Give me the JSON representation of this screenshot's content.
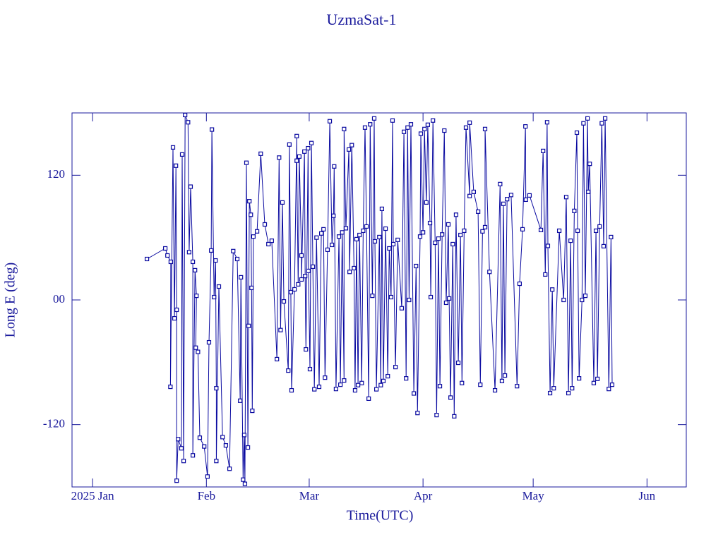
{
  "chart_data": {
    "type": "line",
    "title": "UzmaSat-1",
    "xlabel": "Time(UTC)",
    "ylabel": "Long E (deg)",
    "color": "#0a0aa0",
    "xlim": [
      -5.6,
      161.7
    ],
    "ylim": [
      -180,
      180
    ],
    "xticks": [
      {
        "value": 0,
        "label": "2025 Jan"
      },
      {
        "value": 31,
        "label": "Feb"
      },
      {
        "value": 59,
        "label": "Mar"
      },
      {
        "value": 90,
        "label": "Apr"
      },
      {
        "value": 120,
        "label": "May"
      },
      {
        "value": 151,
        "label": "Jun"
      }
    ],
    "yticks": [
      -120,
      {
        "value": 0,
        "label": "00"
      },
      120
    ],
    "x": [
      14.8,
      19.8,
      20.4,
      21.3,
      21.2,
      21.9,
      22.3,
      22.7,
      22.9,
      22.9,
      23.3,
      24.2,
      24.4,
      24.8,
      25.2,
      26,
      26.3,
      26.7,
      27.3,
      27.3,
      27.9,
      28.3,
      28.1,
      28.7,
      29.2,
      30.4,
      31.3,
      31.7,
      32.3,
      32.5,
      33.1,
      33.5,
      33.7,
      33.7,
      34.4,
      35.4,
      36.3,
      37.3,
      38.3,
      39.4,
      40.2,
      40.4,
      41,
      41.3,
      41.5,
      41.9,
      42.3,
      42.5,
      42.7,
      43.1,
      43.3,
      43.5,
      43.8,
      44.8,
      45.8,
      46.9,
      47.9,
      48.8,
      50.2,
      50.8,
      51.2,
      51.7,
      52.1,
      53.3,
      53.6,
      54,
      54.2,
      55,
      55.6,
      55.6,
      56,
      56.3,
      56.9,
      56.9,
      57.7,
      57.9,
      58.1,
      58.7,
      58.8,
      59.2,
      59.6,
      60,
      60.4,
      61,
      61.7,
      62.3,
      62.9,
      63.3,
      64,
      64.6,
      65.2,
      65.6,
      65.8,
      66.3,
      67.1,
      67.5,
      68,
      68.5,
      68.5,
      69,
      69.8,
      70,
      70.6,
      71.2,
      71.5,
      71.9,
      72.3,
      72.7,
      73.3,
      73.7,
      74.2,
      74.6,
      75.2,
      75.6,
      76.2,
      76.7,
      76.9,
      77.3,
      78.1,
      78.5,
      78.8,
      79.2,
      79.8,
      80.4,
      80.8,
      81.3,
      81.7,
      81.9,
      82.5,
      83.1,
      84.2,
      84.8,
      85.4,
      85.8,
      86.2,
      86.7,
      87.5,
      88.1,
      88.5,
      89.2,
      89.4,
      90,
      90.4,
      90.9,
      91.3,
      91.9,
      92.1,
      92.7,
      93.3,
      93.7,
      94.2,
      94.6,
      95.2,
      95.8,
      96.3,
      96.9,
      97.1,
      97.5,
      98.1,
      98.5,
      99,
      99.6,
      100.2,
      100.6,
      101.2,
      101.7,
      102.7,
      102.7,
      103.8,
      105,
      105.6,
      106.2,
      106.9,
      106.9,
      108.1,
      109.6,
      111,
      111.5,
      111.9,
      112.3,
      112.9,
      114,
      115.6,
      116.3,
      117.1,
      117.9,
      118,
      119,
      122.1,
      122.7,
      123.3,
      123.8,
      124,
      124.6,
      125.2,
      125.6,
      127.1,
      128.3,
      129,
      129.6,
      130.2,
      130.6,
      131.2,
      131.9,
      132.1,
      132.5,
      133.3,
      133.7,
      134.2,
      134.8,
      135,
      135.4,
      136.5,
      137.1,
      137.5,
      138.1,
      138.7,
      139.2,
      139.6,
      140.6,
      141.2,
      141.5
    ],
    "values": [
      39.4,
      49.6,
      42.8,
      36.7,
      -83.6,
      146.8,
      -17.7,
      129.2,
      -9.5,
      -174,
      -134,
      -142.8,
      140,
      -155,
      178,
      171,
      46,
      109,
      36.7,
      -149.6,
      28.6,
      4,
      -46,
      -50,
      -132.6,
      -141,
      -170,
      -40.8,
      47.6,
      164,
      2.7,
      38,
      -85,
      -155,
      12.9,
      -132,
      -140,
      -162.5,
      47,
      39.4,
      -97,
      21.8,
      -173,
      -130,
      -177,
      132,
      -142,
      -25,
      95,
      82,
      11.6,
      -106.7,
      61,
      66,
      140.7,
      72.7,
      53.7,
      57,
      -57,
      137,
      -29,
      93.8,
      -1.4,
      -68,
      149.6,
      7.5,
      -87,
      10.2,
      157.7,
      134,
      15,
      138,
      42.8,
      19.7,
      142.8,
      23,
      -47.6,
      146,
      27.9,
      -66.6,
      151,
      32,
      -86,
      60,
      -83.6,
      64,
      68,
      -74.8,
      48.3,
      172,
      53,
      81,
      128.5,
      -85.7,
      61,
      -81.6,
      65,
      -77.5,
      164.5,
      69,
      144.8,
      27,
      149,
      30.6,
      -87,
      58.5,
      -82,
      62.5,
      -80,
      66.6,
      165.9,
      70.7,
      -95,
      169,
      4,
      174.7,
      56.4,
      -86,
      60.5,
      -82,
      87.7,
      -78,
      68.6,
      -73.4,
      49.6,
      2.7,
      172.7,
      53.7,
      -64.6,
      57.8,
      -8,
      161.8,
      -75.5,
      165.9,
      0,
      169,
      -90,
      32.6,
      -108.8,
      61,
      160,
      65,
      164.5,
      93.8,
      168.6,
      74,
      2.7,
      172.7,
      55,
      -110.8,
      59,
      -83,
      63,
      163,
      -2.7,
      72.7,
      1.4,
      -94,
      53.7,
      -112,
      82,
      -60.5,
      62.5,
      -80,
      66.6,
      165.9,
      100,
      170.6,
      104,
      85,
      -81.6,
      66,
      70,
      164.5,
      27,
      -87,
      111.5,
      -78,
      92.5,
      -72.7,
      97,
      101,
      -83,
      15.6,
      68,
      167,
      96.5,
      100.6,
      67.3,
      143.4,
      24.5,
      171,
      52,
      -89.7,
      10,
      -85,
      66.6,
      0,
      99,
      -89.7,
      57,
      -85,
      85.7,
      161,
      66.6,
      -75.5,
      0,
      170,
      4,
      174.7,
      104,
      131,
      -80,
      66.6,
      -76,
      70.7,
      170,
      51.7,
      174.7,
      -85.7,
      60.5,
      -81.6
    ]
  }
}
